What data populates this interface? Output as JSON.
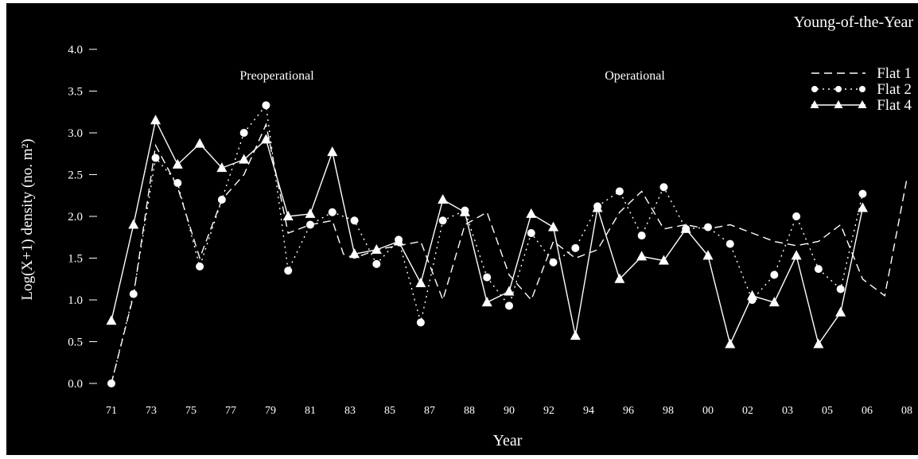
{
  "chart_data": {
    "type": "line",
    "title": "Young-of-the-Year",
    "xlabel": "Year",
    "ylabel": "Log(X+1) density (no. m²)",
    "ylim": [
      0,
      4.0
    ],
    "y_ticks": [
      "0.0",
      "0.5",
      "1.0",
      "1.5",
      "2.0",
      "2.5",
      "3.0",
      "3.5",
      "4.0"
    ],
    "x_tick_labels": [
      "71",
      "73",
      "75",
      "77",
      "79",
      "81",
      "83",
      "85",
      "87",
      "88",
      "90",
      "92",
      "94",
      "96",
      "98",
      "00",
      "02",
      "03",
      "05",
      "06",
      "08"
    ],
    "annotations": [
      "Preoperational",
      "Operational"
    ],
    "legend_position": "top-right",
    "grid": false,
    "colors": {
      "background": "#000000",
      "foreground": "#ffffff"
    },
    "series": [
      {
        "name": "Flat 1",
        "marker": "none",
        "line": "dashed",
        "points": [
          [
            1971,
            0.0
          ],
          [
            1972,
            1.05
          ],
          [
            1973,
            2.85
          ],
          [
            1974,
            2.35
          ],
          [
            1975,
            1.5
          ],
          [
            1976,
            2.2
          ],
          [
            1977,
            2.5
          ],
          [
            1978,
            3.1
          ],
          [
            1979,
            1.8
          ],
          [
            1980,
            1.9
          ],
          [
            1981,
            1.95
          ],
          [
            1981.5,
            1.55
          ],
          [
            1982,
            1.5
          ],
          [
            1983,
            1.6
          ],
          [
            1984,
            1.65
          ],
          [
            1985,
            1.7
          ],
          [
            1986,
            1.0
          ],
          [
            1987,
            1.9
          ],
          [
            1988,
            2.05
          ],
          [
            1989,
            1.3
          ],
          [
            1990,
            1.0
          ],
          [
            1991,
            1.7
          ],
          [
            1992,
            1.5
          ],
          [
            1993,
            1.6
          ],
          [
            1994,
            2.05
          ],
          [
            1995,
            2.3
          ],
          [
            1996,
            1.85
          ],
          [
            1997,
            1.9
          ],
          [
            1998,
            1.85
          ],
          [
            1999,
            1.9
          ],
          [
            2000,
            1.8
          ],
          [
            2001,
            1.7
          ],
          [
            2002,
            1.65
          ],
          [
            2003,
            1.7
          ],
          [
            2004,
            1.9
          ],
          [
            2005,
            1.25
          ],
          [
            2006,
            1.05
          ],
          [
            2007,
            2.45
          ]
        ]
      },
      {
        "name": "Flat 2",
        "marker": "circle",
        "line": "dotted",
        "points": [
          [
            1971,
            0.0
          ],
          [
            1972,
            1.07
          ],
          [
            1973,
            2.7
          ],
          [
            1974,
            2.4
          ],
          [
            1975,
            1.4
          ],
          [
            1976,
            2.2
          ],
          [
            1977,
            3.0
          ],
          [
            1978,
            3.33
          ],
          [
            1979,
            1.35
          ],
          [
            1980,
            1.9
          ],
          [
            1981,
            2.05
          ],
          [
            1982,
            1.95
          ],
          [
            1983,
            1.43
          ],
          [
            1984,
            1.72
          ],
          [
            1985,
            0.73
          ],
          [
            1986,
            1.95
          ],
          [
            1987,
            2.07
          ],
          [
            1988,
            1.27
          ],
          [
            1989,
            0.93
          ],
          [
            1990,
            1.8
          ],
          [
            1991,
            1.45
          ],
          [
            1992,
            1.62
          ],
          [
            1993,
            2.12
          ],
          [
            1994,
            2.3
          ],
          [
            1995,
            1.77
          ],
          [
            1996,
            2.35
          ],
          [
            1997,
            1.85
          ],
          [
            1998,
            1.87
          ],
          [
            1999,
            1.67
          ],
          [
            2000,
            1.0
          ],
          [
            2001,
            1.3
          ],
          [
            2002,
            2.0
          ],
          [
            2003,
            1.37
          ],
          [
            2004,
            1.13
          ],
          [
            2005,
            2.27
          ]
        ]
      },
      {
        "name": "Flat 4",
        "marker": "triangle",
        "line": "solid",
        "points": [
          [
            1971,
            0.75
          ],
          [
            1972,
            1.9
          ],
          [
            1973,
            3.15
          ],
          [
            1974,
            2.62
          ],
          [
            1975,
            2.87
          ],
          [
            1976,
            2.58
          ],
          [
            1977,
            2.68
          ],
          [
            1978,
            2.92
          ],
          [
            1979,
            2.0
          ],
          [
            1980,
            2.03
          ],
          [
            1981,
            2.77
          ],
          [
            1982,
            1.55
          ],
          [
            1983,
            1.6
          ],
          [
            1984,
            1.7
          ],
          [
            1985,
            1.2
          ],
          [
            1986,
            2.2
          ],
          [
            1987,
            2.05
          ],
          [
            1988,
            0.97
          ],
          [
            1989,
            1.1
          ],
          [
            1990,
            2.03
          ],
          [
            1991,
            1.87
          ],
          [
            1992,
            0.57
          ],
          [
            1993,
            2.1
          ],
          [
            1994,
            1.25
          ],
          [
            1995,
            1.52
          ],
          [
            1996,
            1.47
          ],
          [
            1997,
            1.85
          ],
          [
            1998,
            1.53
          ],
          [
            1999,
            0.47
          ],
          [
            2000,
            1.05
          ],
          [
            2001,
            0.97
          ],
          [
            2002,
            1.53
          ],
          [
            2003,
            0.47
          ],
          [
            2004,
            0.85
          ],
          [
            2005,
            2.1
          ]
        ]
      }
    ]
  }
}
